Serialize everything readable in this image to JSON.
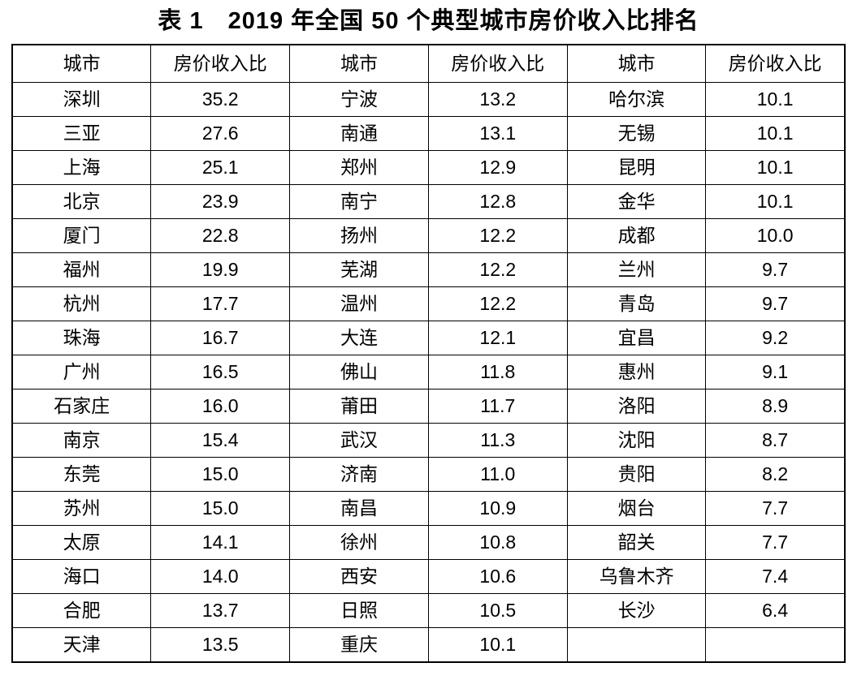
{
  "page": {
    "title": "表 1　2019 年全国 50 个典型城市房价收入比排名"
  },
  "table": {
    "headers": [
      "城市",
      "房价收入比",
      "城市",
      "房价收入比",
      "城市",
      "房价收入比"
    ],
    "rows": [
      [
        "深圳",
        "35.2",
        "宁波",
        "13.2",
        "哈尔滨",
        "10.1"
      ],
      [
        "三亚",
        "27.6",
        "南通",
        "13.1",
        "无锡",
        "10.1"
      ],
      [
        "上海",
        "25.1",
        "郑州",
        "12.9",
        "昆明",
        "10.1"
      ],
      [
        "北京",
        "23.9",
        "南宁",
        "12.8",
        "金华",
        "10.1"
      ],
      [
        "厦门",
        "22.8",
        "扬州",
        "12.2",
        "成都",
        "10.0"
      ],
      [
        "福州",
        "19.9",
        "芜湖",
        "12.2",
        "兰州",
        "9.7"
      ],
      [
        "杭州",
        "17.7",
        "温州",
        "12.2",
        "青岛",
        "9.7"
      ],
      [
        "珠海",
        "16.7",
        "大连",
        "12.1",
        "宜昌",
        "9.2"
      ],
      [
        "广州",
        "16.5",
        "佛山",
        "11.8",
        "惠州",
        "9.1"
      ],
      [
        "石家庄",
        "16.0",
        "莆田",
        "11.7",
        "洛阳",
        "8.9"
      ],
      [
        "南京",
        "15.4",
        "武汉",
        "11.3",
        "沈阳",
        "8.7"
      ],
      [
        "东莞",
        "15.0",
        "济南",
        "11.0",
        "贵阳",
        "8.2"
      ],
      [
        "苏州",
        "15.0",
        "南昌",
        "10.9",
        "烟台",
        "7.7"
      ],
      [
        "太原",
        "14.1",
        "徐州",
        "10.8",
        "韶关",
        "7.7"
      ],
      [
        "海口",
        "14.0",
        "西安",
        "10.6",
        "乌鲁木齐",
        "7.4"
      ],
      [
        "合肥",
        "13.7",
        "日照",
        "10.5",
        "长沙",
        "6.4"
      ],
      [
        "天津",
        "13.5",
        "重庆",
        "10.1",
        "",
        ""
      ]
    ]
  }
}
